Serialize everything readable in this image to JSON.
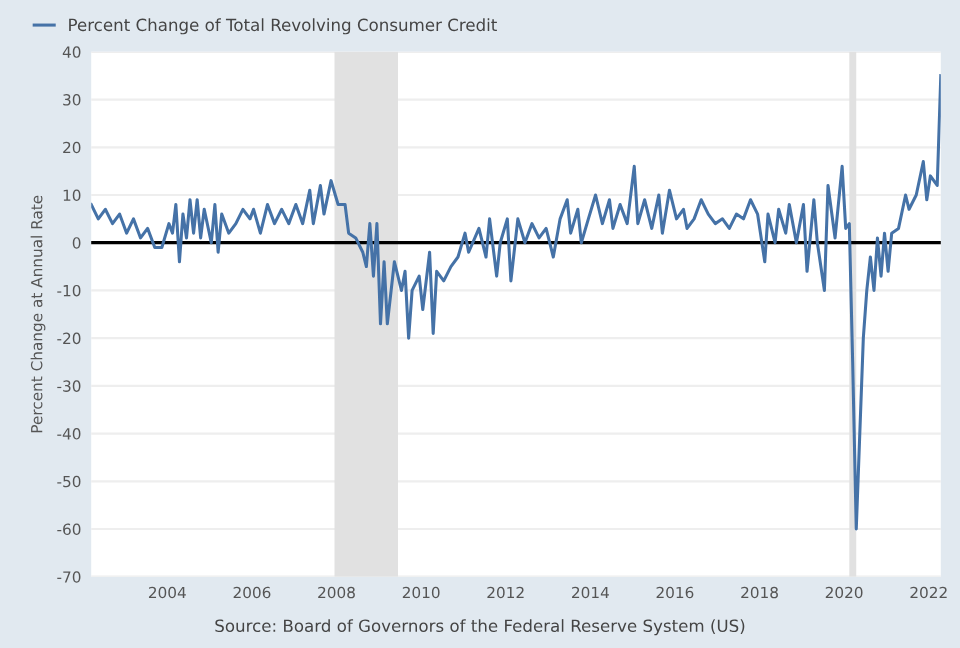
{
  "chart_data": {
    "type": "line",
    "ylabel": "Percent Change at Annual Rate",
    "legend": "top left",
    "grid": "y",
    "annotations": [
      "Source: Board of Governors of the Federal Reserve System (US)"
    ],
    "xlim": [
      "2002-03",
      "2022-04"
    ],
    "ylim": [
      -70,
      40
    ],
    "xticks": [
      {
        "value": "2004",
        "label": "2004"
      },
      {
        "value": "2006",
        "label": "2006"
      },
      {
        "value": "2008",
        "label": "2008"
      },
      {
        "value": "2010",
        "label": "2010"
      },
      {
        "value": "2012",
        "label": "2012"
      },
      {
        "value": "2014",
        "label": "2014"
      },
      {
        "value": "2016",
        "label": "2016"
      },
      {
        "value": "2018",
        "label": "2018"
      },
      {
        "value": "2020",
        "label": "2020"
      },
      {
        "value": "2022",
        "label": "2022"
      }
    ],
    "yticks": [
      -70,
      -60,
      -50,
      -40,
      -30,
      -20,
      -10,
      0,
      10,
      20,
      30,
      40
    ],
    "bands": [
      {
        "axis": "x",
        "from": "2007-12",
        "to": "2009-06",
        "label": null,
        "color": "#e1e1e1"
      },
      {
        "axis": "x",
        "from": "2020-02",
        "to": "2020-04",
        "label": null,
        "color": "#e1e1e1"
      }
    ],
    "ref_lines": [
      {
        "axis": "y",
        "value": 0,
        "label": null,
        "color": "#000000"
      }
    ],
    "x": [
      "2002-03",
      "2002-05",
      "2002-07",
      "2002-09",
      "2002-11",
      "2003-01",
      "2003-03",
      "2003-05",
      "2003-07",
      "2003-09",
      "2003-11",
      "2004-01",
      "2004-02",
      "2004-03",
      "2004-04",
      "2004-05",
      "2004-06",
      "2004-07",
      "2004-08",
      "2004-09",
      "2004-10",
      "2004-11",
      "2005-01",
      "2005-02",
      "2005-03",
      "2005-04",
      "2005-06",
      "2005-08",
      "2005-10",
      "2005-12",
      "2006-01",
      "2006-03",
      "2006-05",
      "2006-07",
      "2006-09",
      "2006-11",
      "2007-01",
      "2007-03",
      "2007-05",
      "2007-06",
      "2007-08",
      "2007-09",
      "2007-11",
      "2008-01",
      "2008-03",
      "2008-04",
      "2008-06",
      "2008-08",
      "2008-09",
      "2008-10",
      "2008-11",
      "2008-12",
      "2009-01",
      "2009-02",
      "2009-03",
      "2009-05",
      "2009-07",
      "2009-08",
      "2009-09",
      "2009-10",
      "2009-12",
      "2010-01",
      "2010-03",
      "2010-04",
      "2010-05",
      "2010-07",
      "2010-09",
      "2010-11",
      "2011-01",
      "2011-02",
      "2011-05",
      "2011-07",
      "2011-08",
      "2011-10",
      "2011-11",
      "2012-01",
      "2012-02",
      "2012-04",
      "2012-06",
      "2012-08",
      "2012-10",
      "2012-12",
      "2013-02",
      "2013-04",
      "2013-06",
      "2013-07",
      "2013-09",
      "2013-10",
      "2013-12",
      "2014-02",
      "2014-04",
      "2014-06",
      "2014-07",
      "2014-09",
      "2014-11",
      "2015-01",
      "2015-02",
      "2015-04",
      "2015-06",
      "2015-08",
      "2015-09",
      "2015-11",
      "2016-01",
      "2016-03",
      "2016-04",
      "2016-06",
      "2016-08",
      "2016-10",
      "2016-12",
      "2017-02",
      "2017-04",
      "2017-06",
      "2017-08",
      "2017-10",
      "2017-12",
      "2018-02",
      "2018-03",
      "2018-05",
      "2018-06",
      "2018-08",
      "2018-09",
      "2018-11",
      "2019-01",
      "2019-02",
      "2019-04",
      "2019-05",
      "2019-07",
      "2019-08",
      "2019-10",
      "2019-12",
      "2020-01",
      "2020-02",
      "2020-03",
      "2020-04",
      "2020-06",
      "2020-07",
      "2020-08",
      "2020-09",
      "2020-10",
      "2020-11",
      "2020-12",
      "2021-01",
      "2021-02",
      "2021-04",
      "2021-06",
      "2021-07",
      "2021-09",
      "2021-11",
      "2021-12",
      "2022-01",
      "2022-03",
      "2022-04"
    ],
    "series": [
      {
        "name": "Percent Change of Total Revolving Consumer Credit",
        "color": "#4572a7",
        "values": [
          8,
          5,
          7,
          4,
          6,
          2,
          5,
          1,
          3,
          -1,
          -1,
          4,
          2,
          8,
          -4,
          6,
          1,
          9,
          2,
          9,
          1,
          7,
          0,
          8,
          -2,
          6,
          2,
          4,
          7,
          5,
          7,
          2,
          8,
          4,
          7,
          4,
          8,
          4,
          11,
          4,
          12,
          6,
          13,
          8,
          8,
          2,
          1,
          -2,
          -5,
          4,
          -7,
          4,
          -17,
          -4,
          -17,
          -4,
          -10,
          -6,
          -20,
          -10,
          -7,
          -14,
          -2,
          -19,
          -6,
          -8,
          -5,
          -3,
          2,
          -2,
          3,
          -3,
          5,
          -7,
          0,
          5,
          -8,
          5,
          0,
          4,
          1,
          3,
          -3,
          5,
          9,
          2,
          7,
          0,
          5,
          10,
          4,
          9,
          3,
          8,
          4,
          16,
          4,
          9,
          3,
          10,
          2,
          11,
          5,
          7,
          3,
          5,
          9,
          6,
          4,
          5,
          3,
          6,
          5,
          9,
          6,
          -4,
          6,
          0,
          7,
          2,
          8,
          0,
          8,
          -6,
          9,
          0,
          -10,
          12,
          1,
          16,
          3,
          4,
          -25,
          -60,
          -20,
          -10,
          -3,
          -10,
          1,
          -7,
          2,
          -6,
          2,
          3,
          10,
          7,
          10,
          17,
          9,
          14,
          12,
          35
        ]
      }
    ]
  }
}
